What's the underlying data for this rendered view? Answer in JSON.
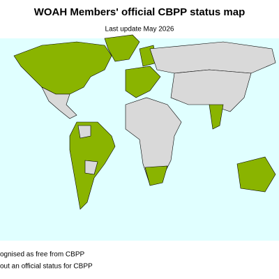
{
  "title": "WOAH Members' official CBPP status map",
  "subtitle": "Last update May 2026",
  "legend": [
    {
      "label": "ognised as free from CBPP",
      "color": "#8ab400"
    },
    {
      "label": "out an official status for CBPP",
      "color": "#d9d9d9"
    }
  ],
  "ocean_color": "#e0ffff"
}
